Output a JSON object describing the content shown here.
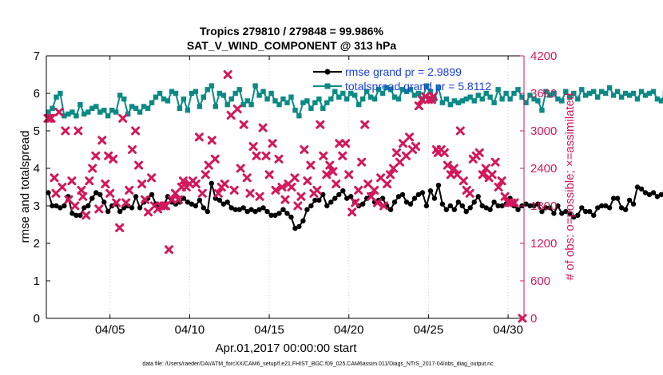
{
  "chart_data": {
    "type": "line",
    "title_line1": "Tropics 279810 / 279848 = 99.986%",
    "title_line2": "SAT_V_WIND_COMPONENT @ 313 hPa",
    "xlabel": "Apr.01,2017 00:00:00 start",
    "ylabel_left": "rmse and totalspread",
    "ylabel_right": "# of obs: o=possible; ×=assimilated",
    "xlim": [
      1,
      31
    ],
    "ylim_left": [
      0,
      7
    ],
    "ylim_right": [
      0,
      4200
    ],
    "x_tick_values": [
      5,
      10,
      15,
      20,
      25,
      30
    ],
    "x_tick_labels": [
      "04/05",
      "04/10",
      "04/15",
      "04/20",
      "04/25",
      "04/30"
    ],
    "y_left_ticks": [
      "0",
      "1",
      "2",
      "3",
      "4",
      "5",
      "6",
      "7"
    ],
    "y_right_ticks": [
      "0",
      "600",
      "1200",
      "1800",
      "2400",
      "3000",
      "3600",
      "4200"
    ],
    "legend": [
      {
        "label": "rmse grand pr = 2.9899",
        "color": "#000000"
      },
      {
        "label": "totalspread grand pr = 5.8112",
        "color": "#0b8a85"
      }
    ],
    "colors": {
      "rmse": "#000000",
      "spread": "#0b8a85",
      "obs": "#d2185a"
    },
    "footnote": "data file: /Users/raeder/DAI/ATM_forcXX/CAM6_setup/f.e21.FHIST_BGC.f09_025.CAM6assim.011/Diags_NTrS_2017-04/obs_diag_output.nc",
    "series": [
      {
        "name": "rmse",
        "axis": "left",
        "step_days": 0.25,
        "x0": 1.125,
        "values": [
          3.35,
          3.0,
          3.0,
          2.95,
          3.0,
          3.25,
          2.8,
          2.75,
          2.75,
          2.95,
          3.0,
          3.2,
          3.35,
          3.3,
          3.1,
          2.85,
          3.0,
          3.05,
          2.85,
          2.95,
          3.0,
          2.95,
          3.25,
          2.95,
          3.1,
          3.2,
          3.3,
          3.05,
          2.95,
          3.0,
          3.25,
          3.1,
          3.05,
          3.1,
          3.2,
          3.1,
          3.05,
          3.0,
          3.15,
          2.95,
          2.85,
          3.6,
          3.2,
          3.15,
          3.05,
          3.1,
          2.95,
          2.9,
          2.9,
          2.95,
          2.85,
          2.9,
          2.85,
          2.9,
          2.95,
          2.85,
          2.75,
          2.75,
          2.8,
          2.9,
          2.8,
          2.7,
          2.4,
          2.45,
          2.6,
          2.9,
          3.0,
          3.15,
          3.15,
          3.3,
          3.0,
          3.1,
          3.2,
          3.3,
          3.4,
          3.2,
          3.25,
          3.1,
          3.0,
          3.05,
          3.2,
          3.3,
          3.1,
          3.15,
          3.2,
          3.0,
          2.9,
          3.1,
          3.25,
          3.3,
          3.1,
          3.05,
          3.2,
          3.3,
          3.35,
          3.0,
          3.4,
          3.2,
          3.55,
          3.05,
          2.9,
          3.0,
          2.9,
          3.1,
          3.0,
          2.85,
          2.95,
          3.1,
          3.25,
          3.0,
          2.95,
          2.9,
          3.1,
          3.0,
          3.0,
          3.05,
          3.2,
          3.0,
          2.9,
          3.0,
          3.05,
          3.0,
          3.0,
          3.05,
          2.85,
          2.95,
          2.95,
          2.8,
          3.0,
          2.8,
          2.85,
          2.8,
          2.7,
          2.75,
          2.95,
          2.85,
          2.85,
          2.75,
          2.95,
          3.0,
          3.0,
          2.95,
          3.2,
          3.2,
          2.95,
          2.9,
          3.15,
          3.05,
          3.5,
          3.45,
          3.35,
          3.3,
          3.35,
          3.25,
          3.3,
          3.4,
          3.45,
          3.35,
          3.45
        ]
      },
      {
        "name": "totalspread",
        "axis": "left",
        "step_days": 0.25,
        "x0": 1.125,
        "values": [
          5.5,
          5.6,
          5.9,
          6.0,
          5.4,
          5.45,
          5.5,
          5.4,
          5.7,
          5.45,
          5.5,
          5.6,
          5.65,
          5.5,
          5.55,
          5.4,
          5.55,
          5.5,
          5.95,
          5.85,
          5.45,
          5.65,
          5.6,
          5.5,
          5.65,
          5.6,
          5.75,
          5.9,
          6.0,
          5.85,
          5.8,
          6.05,
          6.0,
          5.6,
          5.85,
          5.55,
          6.0,
          6.05,
          5.65,
          5.9,
          6.1,
          6.2,
          5.65,
          6.0,
          5.95,
          5.7,
          5.85,
          6.0,
          6.1,
          5.7,
          5.8,
          5.7,
          6.2,
          5.95,
          6.05,
          5.85,
          6.0,
          5.8,
          5.7,
          5.85,
          5.75,
          5.9,
          5.55,
          5.4,
          5.75,
          5.8,
          5.6,
          5.75,
          5.85,
          5.6,
          5.75,
          5.85,
          6.05,
          5.9,
          6.0,
          5.85,
          6.0,
          5.95,
          5.7,
          5.85,
          6.05,
          5.9,
          5.85,
          6.1,
          6.0,
          6.15,
          6.1,
          5.9,
          5.85,
          6.1,
          6.05,
          6.1,
          5.95,
          6.0,
          5.85,
          6.2,
          6.05,
          5.85,
          6.15,
          5.75,
          5.85,
          5.7,
          5.8,
          5.75,
          5.8,
          5.85,
          5.9,
          5.8,
          5.95,
          5.85,
          6.0,
          5.9,
          5.75,
          6.1,
          5.85,
          6.0,
          5.85,
          6.0,
          6.1,
          5.9,
          5.75,
          5.95,
          5.85,
          5.8,
          5.55,
          6.05,
          5.95,
          6.0,
          5.85,
          5.8,
          6.05,
          5.9,
          6.0,
          5.85,
          6.1,
          5.95,
          6.0,
          6.05,
          5.9,
          6.05,
          6.0,
          6.15,
          5.95,
          6.05,
          5.9,
          6.0,
          5.95,
          6.0,
          5.85,
          6.05,
          5.95,
          6.0,
          6.05,
          5.85,
          5.8,
          6.0,
          5.95,
          5.85,
          6.1,
          6.05
        ]
      },
      {
        "name": "obs_assimilated",
        "axis": "right",
        "marker": "x",
        "points": [
          [
            1.1,
            3200
          ],
          [
            1.2,
            3200
          ],
          [
            1.3,
            3200
          ],
          [
            1.5,
            2250
          ],
          [
            1.6,
            2000
          ],
          [
            1.8,
            3300
          ],
          [
            2.0,
            2100
          ],
          [
            2.2,
            3000
          ],
          [
            2.4,
            1900
          ],
          [
            2.6,
            2200
          ],
          [
            2.8,
            1800
          ],
          [
            3.0,
            3000
          ],
          [
            3.2,
            2050
          ],
          [
            3.3,
            1950
          ],
          [
            3.5,
            1650
          ],
          [
            3.7,
            2200
          ],
          [
            3.9,
            2400
          ],
          [
            4.1,
            2600
          ],
          [
            4.3,
            1750
          ],
          [
            4.5,
            2850
          ],
          [
            4.7,
            2150
          ],
          [
            4.9,
            2600
          ],
          [
            5.0,
            2000
          ],
          [
            5.2,
            2550
          ],
          [
            5.4,
            1850
          ],
          [
            5.6,
            1450
          ],
          [
            5.8,
            3200
          ],
          [
            6.0,
            1850
          ],
          [
            6.2,
            2050
          ],
          [
            6.4,
            2700
          ],
          [
            6.6,
            3000
          ],
          [
            6.8,
            2450
          ],
          [
            7.0,
            2150
          ],
          [
            7.2,
            1900
          ],
          [
            7.4,
            1700
          ],
          [
            7.6,
            2250
          ],
          [
            7.8,
            1800
          ],
          [
            8.0,
            1750
          ],
          [
            8.2,
            1800
          ],
          [
            8.4,
            1800
          ],
          [
            8.5,
            1800
          ],
          [
            8.7,
            1100
          ],
          [
            8.9,
            1900
          ],
          [
            9.1,
            2000
          ],
          [
            9.3,
            1900
          ],
          [
            9.5,
            2100
          ],
          [
            9.6,
            2200
          ],
          [
            9.8,
            2100
          ],
          [
            10.0,
            2150
          ],
          [
            10.2,
            2200
          ],
          [
            10.4,
            2150
          ],
          [
            10.6,
            2900
          ],
          [
            10.8,
            2000
          ],
          [
            11.0,
            2300
          ],
          [
            11.2,
            2450
          ],
          [
            11.4,
            2850
          ],
          [
            11.6,
            2550
          ],
          [
            11.8,
            2000
          ],
          [
            12.0,
            2100
          ],
          [
            12.2,
            2150
          ],
          [
            12.4,
            3900
          ],
          [
            12.6,
            3250
          ],
          [
            12.8,
            2050
          ],
          [
            13.0,
            3350
          ],
          [
            13.2,
            2400
          ],
          [
            13.4,
            3100
          ],
          [
            13.6,
            2250
          ],
          [
            13.8,
            2000
          ],
          [
            14.0,
            2750
          ],
          [
            14.2,
            2600
          ],
          [
            14.4,
            1950
          ],
          [
            14.6,
            3050
          ],
          [
            14.8,
            2600
          ],
          [
            15.0,
            2300
          ],
          [
            15.2,
            2800
          ],
          [
            15.4,
            2050
          ],
          [
            15.6,
            2550
          ],
          [
            15.8,
            2100
          ],
          [
            16.0,
            1900
          ],
          [
            16.2,
            2150
          ],
          [
            16.4,
            2100
          ],
          [
            16.6,
            2250
          ],
          [
            16.8,
            1800
          ],
          [
            17.0,
            1950
          ],
          [
            17.2,
            2700
          ],
          [
            17.4,
            2200
          ],
          [
            17.6,
            2450
          ],
          [
            17.8,
            2000
          ],
          [
            18.0,
            2050
          ],
          [
            18.2,
            3100
          ],
          [
            18.4,
            2600
          ],
          [
            18.6,
            2300
          ],
          [
            18.8,
            2450
          ],
          [
            19.0,
            2350
          ],
          [
            19.2,
            2150
          ],
          [
            19.4,
            2800
          ],
          [
            19.6,
            2600
          ],
          [
            19.8,
            2800
          ],
          [
            20.0,
            2300
          ],
          [
            20.2,
            1700
          ],
          [
            20.4,
            1850
          ],
          [
            20.6,
            2050
          ],
          [
            20.8,
            2500
          ],
          [
            21.0,
            3100
          ],
          [
            21.2,
            2150
          ],
          [
            21.4,
            1950
          ],
          [
            21.6,
            2050
          ],
          [
            21.8,
            1850
          ],
          [
            22.0,
            2250
          ],
          [
            22.2,
            1800
          ],
          [
            22.4,
            2150
          ],
          [
            22.6,
            2300
          ],
          [
            22.8,
            2400
          ],
          [
            23.0,
            2650
          ],
          [
            23.2,
            2500
          ],
          [
            23.4,
            2800
          ],
          [
            23.6,
            2600
          ],
          [
            23.8,
            2900
          ],
          [
            24.0,
            2700
          ],
          [
            24.2,
            2750
          ],
          [
            24.4,
            3400
          ],
          [
            24.6,
            3500
          ],
          [
            24.8,
            3550
          ],
          [
            25.0,
            3500
          ],
          [
            25.2,
            3500
          ],
          [
            25.3,
            3550
          ],
          [
            25.5,
            2700
          ],
          [
            25.6,
            2650
          ],
          [
            25.8,
            2700
          ],
          [
            26.0,
            2650
          ],
          [
            26.2,
            2450
          ],
          [
            26.4,
            2300
          ],
          [
            26.6,
            2400
          ],
          [
            26.8,
            2300
          ],
          [
            27.0,
            3000
          ],
          [
            27.2,
            2200
          ],
          [
            27.4,
            2050
          ],
          [
            27.6,
            2000
          ],
          [
            27.8,
            2550
          ],
          [
            28.0,
            2600
          ],
          [
            28.2,
            2650
          ],
          [
            28.4,
            2300
          ],
          [
            28.6,
            2400
          ],
          [
            28.8,
            2250
          ],
          [
            29.0,
            2300
          ],
          [
            29.2,
            2500
          ],
          [
            29.4,
            2100
          ],
          [
            29.6,
            2200
          ],
          [
            29.8,
            1950
          ],
          [
            30.0,
            1850
          ],
          [
            30.2,
            1850
          ],
          [
            30.4,
            1850
          ],
          [
            30.9,
            0
          ]
        ]
      }
    ]
  }
}
